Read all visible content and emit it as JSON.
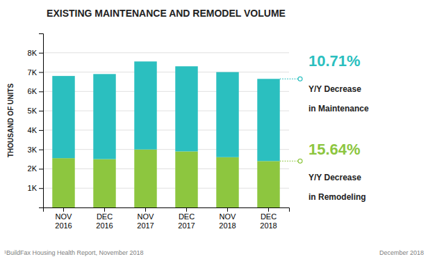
{
  "chart_data": {
    "type": "bar",
    "stacked": true,
    "title": "EXISTING MAINTENANCE AND REMODEL VOLUME",
    "ylabel": "THOUSAND OF UNITS",
    "categories": [
      "NOV\n2016",
      "DEC\n2016",
      "NOV\n2017",
      "DEC\n2017",
      "NOV\n2018",
      "DEC\n2018"
    ],
    "series": [
      {
        "color": "#8DC63F",
        "values": [
          2550,
          2500,
          3000,
          2900,
          2600,
          2400
        ]
      },
      {
        "color": "#2BBFBF",
        "values": [
          4250,
          4400,
          4550,
          4400,
          4400,
          4250
        ]
      }
    ],
    "ylim": [
      0,
      9000
    ],
    "yticks": [
      {
        "value": 1000,
        "label": "1K"
      },
      {
        "value": 2000,
        "label": "2K"
      },
      {
        "value": 3000,
        "label": "3K"
      },
      {
        "value": 4000,
        "label": "4K"
      },
      {
        "value": 5000,
        "label": "5K"
      },
      {
        "value": 6000,
        "label": "6K"
      },
      {
        "value": 7000,
        "label": "7K"
      },
      {
        "value": 8000,
        "label": "8K"
      }
    ],
    "grid": true,
    "annotations": [
      {
        "text": "10.71%",
        "color": "#2BBFBF"
      },
      {
        "text": "Y/Y Decrease"
      },
      {
        "text": "in Maintenance"
      },
      {
        "text": "15.64%",
        "color": "#8DC63F"
      },
      {
        "text": "Y/Y Decrease"
      },
      {
        "text": "in Remodeling"
      }
    ],
    "footnotes": [
      "¹BuildFax Housing Health Report, November 2018",
      "December 2018"
    ]
  }
}
